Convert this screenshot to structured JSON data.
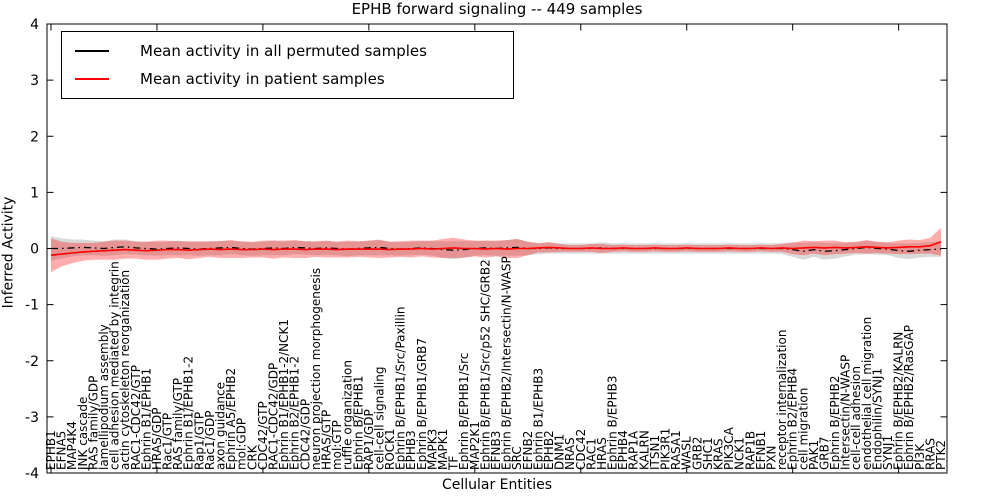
{
  "title": "EPHB forward signaling -- 449 samples",
  "axes": {
    "x_label": "Cellular Entities",
    "y_label": "Inferred Activity",
    "y_ticks": [
      "4",
      "3",
      "2",
      "1",
      "0",
      "-1",
      "-2",
      "-3",
      "-4"
    ]
  },
  "legend": {
    "entries": [
      {
        "label": "Mean activity in all permuted samples",
        "color": "#000000"
      },
      {
        "label": "Mean activity in patient samples",
        "color": "#ff0000"
      }
    ]
  },
  "chart_data": {
    "type": "line",
    "title": "EPHB forward signaling -- 449 samples",
    "xlabel": "Cellular Entities",
    "ylabel": "Inferred Activity",
    "ylim": [
      -4,
      4
    ],
    "yticks": [
      4,
      3,
      2,
      1,
      0,
      -1,
      -2,
      -3,
      -4
    ],
    "grid": false,
    "legend_position": "upper left",
    "x_tick_rotation": 90,
    "categories": [
      "EPHB1",
      "EFNA5",
      "MAP4K4",
      "JNK cascade",
      "RAS family/GDP",
      "lamellipodium assembly",
      "cell adhesion mediated by integrin",
      "actin cytoskeleton reorganization",
      "RAC1-CDC42/GTP",
      "Ephrin B1/EPHB1",
      "HRAS/GDP",
      "Rac1/GTP",
      "RAS family/GTP",
      "Ephrin B1/EPHB1-2",
      "Rap1/GTP",
      "Rac1/GDP",
      "axon guidance",
      "Ephrin A5/EPHB2",
      "mol:GDP",
      "CRK",
      "CDC42/GTP",
      "RAC1-CDC42/GDP",
      "Ephrin B1/EPHB1-2/NCK1",
      "Ephrin B2/EPHB1-2",
      "CDC42/GDP",
      "neuron projection morphogenesis",
      "HRAS/GTP",
      "mol:GTP",
      "ruffle organization",
      "Ephrin B/EPHB1",
      "RAP1/GDP",
      "cell-cell signaling",
      "ROCK1",
      "Ephrin B/EPHB1/Src/Paxillin",
      "EPHB3",
      "Ephrin B/EPHB1/GRB7",
      "MAPK3",
      "MAPK1",
      "TF",
      "Ephrin B/EPHB1/Src",
      "MAP2K1",
      "Ephrin B/EPHB1/Src/p52 SHC/GRB2",
      "EFNB3",
      "Ephrin B/EPHB2/Intersectin/N-WASP",
      "SRC",
      "EFNB2",
      "Ephrin B1/EPHB3",
      "EPHB2",
      "DNM1",
      "NRAS",
      "CDC42",
      "RAC1",
      "HRAS",
      "Ephrin B/EPHB3",
      "EPHB4",
      "RAP1A",
      "KALRN",
      "ITSN1",
      "PIK3R1",
      "RASA1",
      "WASL",
      "GRB2",
      "SHC1",
      "KRAS",
      "PIK3CA",
      "NCK1",
      "RAP1B",
      "EFNB1",
      "PXN",
      "receptor internalization",
      "Ephrin B2/EPHB4",
      "cell migration",
      "PAK1",
      "GRB7",
      "Ephrin B/EPHB2",
      "Intersectin/N-WASP",
      "cell-cell adhesion",
      "endothelial cell migration",
      "Endophilin/SYNJ1",
      "SYNJ1",
      "Ephrin B/EPHB2/KALRN",
      "Ephrin B/EPHB2/RasGAP",
      "PI3K",
      "RRAS",
      "PTK2"
    ],
    "series": [
      {
        "name": "Mean activity in all permuted samples",
        "color": "#000000",
        "style": "dashdot",
        "band_opacity": 0.15,
        "values": [
          0,
          0,
          0.01,
          0.02,
          0.01,
          0,
          0.02,
          0.03,
          0.01,
          0,
          -0.01,
          0,
          0.01,
          0,
          -0.01,
          0,
          0.01,
          0.02,
          0,
          -0.01,
          0,
          0.01,
          0,
          0.02,
          0.01,
          0,
          0.01,
          0,
          -0.01,
          0,
          0.01,
          0.02,
          0,
          -0.01,
          0,
          0.01,
          0,
          -0.02,
          -0.03,
          -0.02,
          0,
          0.01,
          0,
          0.01,
          0.02,
          0,
          0,
          0.01,
          0,
          0,
          0,
          0,
          0.01,
          0,
          0,
          0,
          0,
          0,
          0,
          0,
          0,
          0,
          0,
          0,
          0,
          0,
          0,
          0,
          0,
          0,
          -0.02,
          -0.05,
          -0.02,
          -0.05,
          -0.04,
          -0.02,
          0,
          0.02,
          0,
          -0.01,
          -0.04,
          -0.05,
          -0.03,
          -0.02,
          -0.01
        ],
        "band_halfwidth": [
          0.22,
          0.18,
          0.15,
          0.14,
          0.13,
          0.13,
          0.14,
          0.13,
          0.12,
          0.12,
          0.12,
          0.12,
          0.13,
          0.12,
          0.12,
          0.12,
          0.13,
          0.12,
          0.12,
          0.12,
          0.12,
          0.13,
          0.12,
          0.12,
          0.12,
          0.12,
          0.12,
          0.12,
          0.13,
          0.12,
          0.13,
          0.14,
          0.12,
          0.12,
          0.12,
          0.12,
          0.13,
          0.15,
          0.16,
          0.15,
          0.13,
          0.13,
          0.13,
          0.14,
          0.15,
          0.12,
          0.1,
          0.1,
          0.09,
          0.09,
          0.09,
          0.09,
          0.1,
          0.09,
          0.09,
          0.09,
          0.09,
          0.09,
          0.09,
          0.09,
          0.09,
          0.09,
          0.09,
          0.09,
          0.09,
          0.09,
          0.09,
          0.09,
          0.09,
          0.1,
          0.13,
          0.15,
          0.13,
          0.15,
          0.14,
          0.12,
          0.11,
          0.12,
          0.11,
          0.11,
          0.13,
          0.14,
          0.13,
          0.13,
          0.14
        ]
      },
      {
        "name": "Mean activity in patient samples",
        "color": "#ff0000",
        "style": "solid",
        "band_opacity": 0.32,
        "values": [
          -0.12,
          -0.1,
          -0.08,
          -0.06,
          -0.05,
          -0.04,
          -0.03,
          -0.02,
          -0.03,
          -0.04,
          -0.03,
          -0.02,
          -0.02,
          -0.03,
          -0.02,
          -0.01,
          -0.02,
          -0.01,
          -0.02,
          -0.02,
          -0.01,
          -0.02,
          -0.01,
          -0.01,
          -0.02,
          -0.01,
          -0.01,
          -0.02,
          -0.01,
          -0.01,
          -0.01,
          -0.01,
          -0.02,
          -0.01,
          -0.01,
          0,
          -0.01,
          0,
          0.01,
          0,
          0,
          -0.01,
          0,
          -0.01,
          0,
          0,
          0.01,
          0.02,
          0.01,
          0,
          0,
          0.01,
          0,
          0,
          0.01,
          0,
          0,
          0.01,
          0,
          0,
          0.01,
          0,
          0,
          0,
          0.01,
          0,
          0,
          0.01,
          0,
          0.01,
          0,
          0.01,
          0.02,
          0.01,
          0.02,
          0.01,
          0.02,
          0.03,
          0.02,
          0.01,
          0.02,
          0.03,
          0.03,
          0.05,
          0.12
        ],
        "band_halfwidth": [
          0.3,
          0.22,
          0.18,
          0.16,
          0.15,
          0.16,
          0.17,
          0.16,
          0.15,
          0.16,
          0.17,
          0.16,
          0.15,
          0.16,
          0.15,
          0.14,
          0.15,
          0.16,
          0.15,
          0.14,
          0.15,
          0.16,
          0.15,
          0.16,
          0.15,
          0.14,
          0.15,
          0.14,
          0.15,
          0.14,
          0.15,
          0.16,
          0.14,
          0.14,
          0.15,
          0.14,
          0.15,
          0.17,
          0.18,
          0.16,
          0.14,
          0.15,
          0.14,
          0.16,
          0.17,
          0.12,
          0.08,
          0.09,
          0.07,
          0.06,
          0.06,
          0.07,
          0.08,
          0.06,
          0.06,
          0.06,
          0.06,
          0.06,
          0.06,
          0.06,
          0.06,
          0.06,
          0.06,
          0.06,
          0.06,
          0.06,
          0.06,
          0.06,
          0.06,
          0.07,
          0.1,
          0.13,
          0.11,
          0.13,
          0.12,
          0.1,
          0.1,
          0.12,
          0.1,
          0.1,
          0.12,
          0.13,
          0.12,
          0.14,
          0.25
        ]
      }
    ]
  }
}
